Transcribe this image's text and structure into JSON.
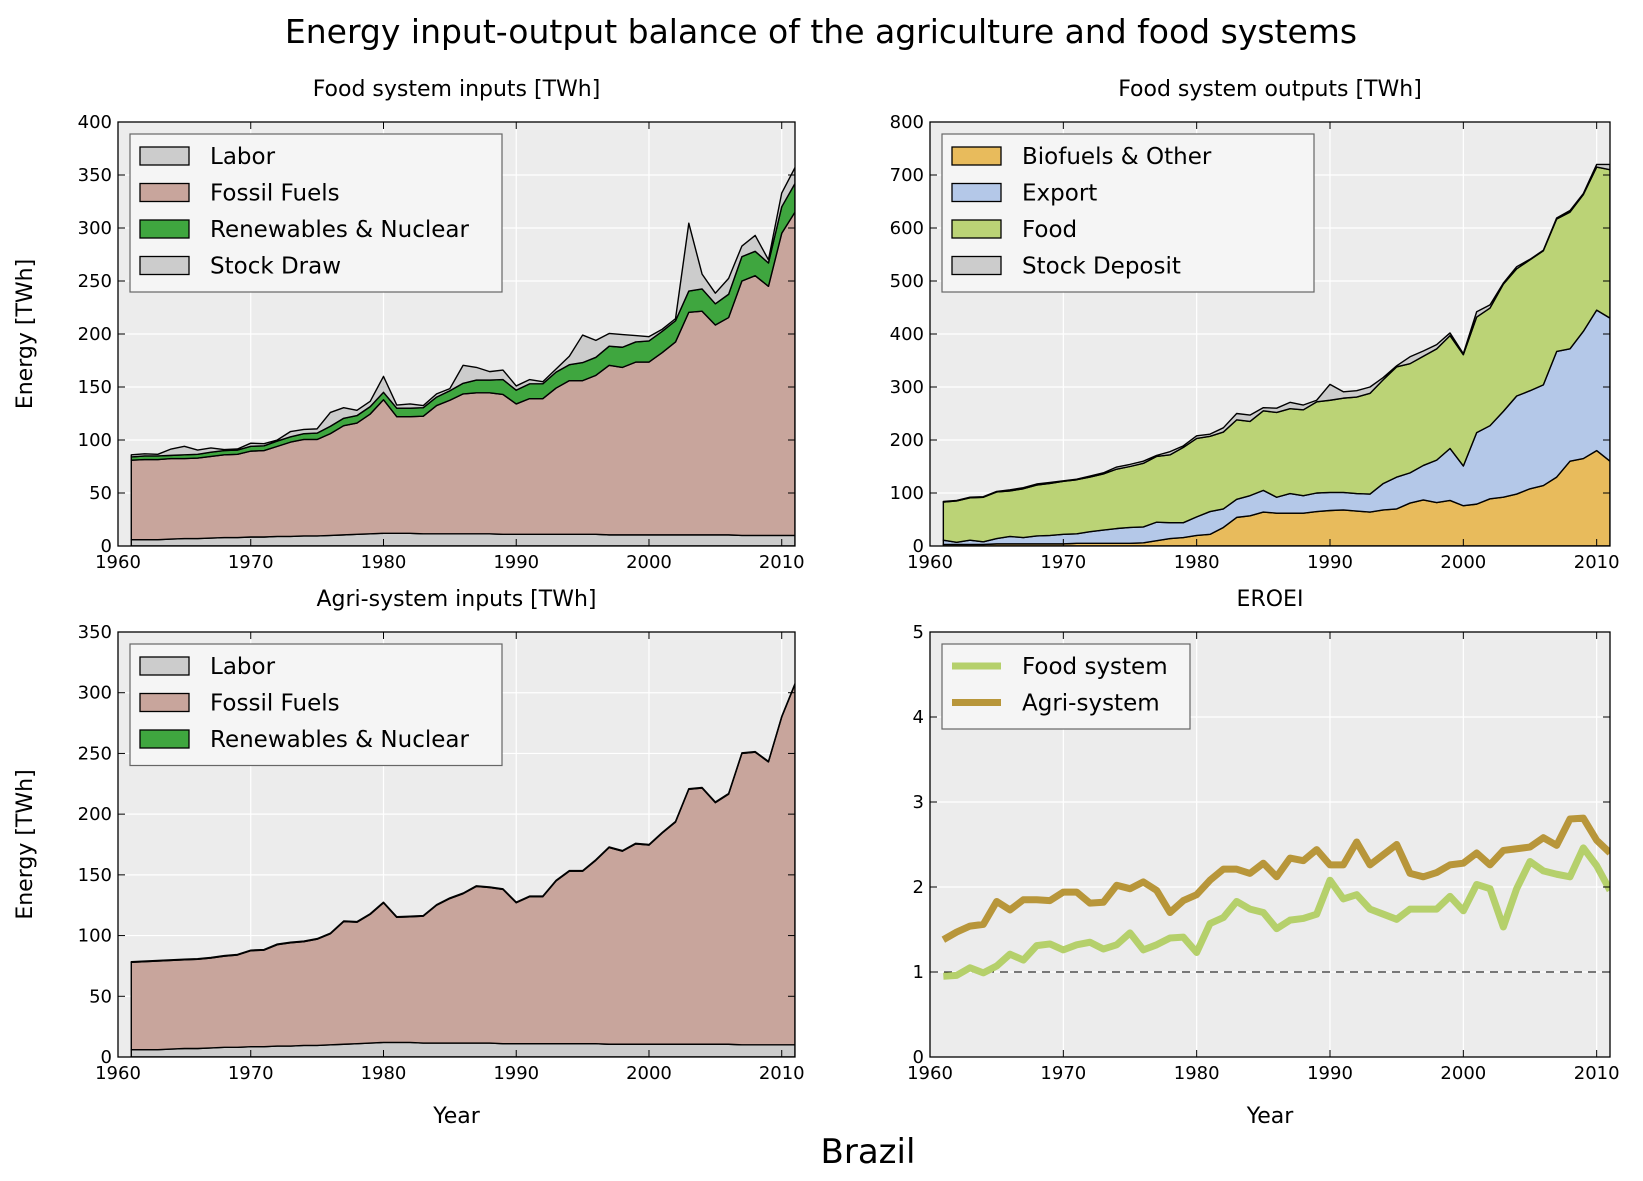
{
  "figure": {
    "title": "Energy input-output balance of the agriculture and food systems",
    "country": "Brazil"
  },
  "chart_data": [
    {
      "type": "area",
      "title": "Food system inputs [TWh]",
      "xlabel": "",
      "ylabel": "Energy [TWh]",
      "xlim": [
        1960,
        2011
      ],
      "ylim": [
        0,
        400
      ],
      "xticks": [
        1960,
        1970,
        1980,
        1990,
        2000,
        2010
      ],
      "yticks": [
        0,
        50,
        100,
        150,
        200,
        250,
        300,
        350,
        400
      ],
      "grid": true,
      "legend": "top-left",
      "stacked": true,
      "x": [
        1961,
        1962,
        1963,
        1964,
        1965,
        1966,
        1967,
        1968,
        1969,
        1970,
        1971,
        1972,
        1973,
        1974,
        1975,
        1976,
        1977,
        1978,
        1979,
        1980,
        1981,
        1982,
        1983,
        1984,
        1985,
        1986,
        1987,
        1988,
        1989,
        1990,
        1991,
        1992,
        1993,
        1994,
        1995,
        1996,
        1997,
        1998,
        1999,
        2000,
        2001,
        2002,
        2003,
        2004,
        2005,
        2006,
        2007,
        2008,
        2009,
        2010,
        2011
      ],
      "series": [
        {
          "name": "Labor",
          "color": "#cccccc",
          "values": [
            6,
            6,
            6,
            6.5,
            7,
            7,
            7.5,
            8,
            8,
            8.5,
            8.5,
            9,
            9,
            9.5,
            9.5,
            10,
            10.5,
            11,
            11.5,
            12,
            12,
            12,
            11.5,
            11.5,
            11.5,
            11.5,
            11.5,
            11.5,
            11,
            11,
            11,
            11,
            11,
            11,
            11,
            11,
            10.5,
            10.5,
            10.5,
            10.5,
            10.5,
            10.5,
            10.5,
            10.5,
            10.5,
            10.5,
            10,
            10,
            10,
            10,
            10
          ]
        },
        {
          "name": "Fossil Fuels",
          "color": "#c8a59c",
          "values": [
            75,
            75.5,
            75.5,
            76,
            75.5,
            76,
            77,
            78,
            78.5,
            81,
            81.5,
            85,
            89,
            91,
            91,
            96,
            103,
            105,
            113,
            126,
            110,
            110,
            111,
            121,
            126,
            132,
            133,
            133,
            132,
            123,
            128,
            128,
            138,
            145,
            145,
            150,
            160,
            158,
            163,
            163,
            172,
            182,
            210,
            211,
            198,
            205,
            240,
            245,
            235,
            285,
            305
          ]
        },
        {
          "name": "Renewables & Nuclear",
          "color": "#3fa63f",
          "values": [
            3,
            3.5,
            3.5,
            3,
            3.5,
            3.5,
            4,
            4,
            4,
            4.5,
            4.5,
            5,
            5,
            5.5,
            6,
            7,
            7,
            7,
            7,
            7,
            8,
            8,
            8,
            8,
            9,
            10,
            12,
            12,
            14,
            13,
            14,
            14,
            15,
            15,
            17,
            17,
            18,
            19,
            19,
            20,
            20,
            20,
            20,
            21,
            20,
            22,
            23,
            23,
            22,
            25,
            27
          ]
        },
        {
          "name": "Stock Draw",
          "color": "#cccccc",
          "values": [
            2,
            2,
            1.5,
            6,
            8,
            4,
            4,
            1,
            1,
            3,
            2,
            1,
            5,
            4,
            4,
            13,
            10,
            5,
            5,
            15,
            3,
            4,
            2,
            3,
            2,
            17,
            12,
            8,
            9,
            4,
            4,
            2,
            3,
            8,
            26,
            16,
            12,
            12,
            6,
            4,
            2,
            2,
            64,
            14,
            10,
            15,
            10,
            15,
            3,
            13,
            15
          ]
        }
      ]
    },
    {
      "type": "area",
      "title": "Food system outputs [TWh]",
      "xlabel": "",
      "ylabel": "",
      "xlim": [
        1960,
        2011
      ],
      "ylim": [
        0,
        800
      ],
      "xticks": [
        1960,
        1970,
        1980,
        1990,
        2000,
        2010
      ],
      "yticks": [
        0,
        100,
        200,
        300,
        400,
        500,
        600,
        700,
        800
      ],
      "grid": true,
      "legend": "top-left",
      "stacked": true,
      "x": [
        1961,
        1962,
        1963,
        1964,
        1965,
        1966,
        1967,
        1968,
        1969,
        1970,
        1971,
        1972,
        1973,
        1974,
        1975,
        1976,
        1977,
        1978,
        1979,
        1980,
        1981,
        1982,
        1983,
        1984,
        1985,
        1986,
        1987,
        1988,
        1989,
        1990,
        1991,
        1992,
        1993,
        1994,
        1995,
        1996,
        1997,
        1998,
        1999,
        2000,
        2001,
        2002,
        2003,
        2004,
        2005,
        2006,
        2007,
        2008,
        2009,
        2010,
        2011
      ],
      "series": [
        {
          "name": "Biofuels & Other",
          "color": "#e8bb5c",
          "values": [
            3,
            3,
            3,
            3,
            4,
            4,
            4,
            4,
            4,
            4,
            5,
            5,
            5,
            5,
            5,
            6,
            10,
            14,
            16,
            20,
            22,
            35,
            54,
            57,
            64,
            62,
            62,
            62,
            65,
            67,
            68,
            66,
            64,
            68,
            70,
            81,
            87,
            82,
            86,
            76,
            79,
            89,
            92,
            98,
            108,
            114,
            130,
            160,
            165,
            180,
            160
          ]
        },
        {
          "name": "Export",
          "color": "#b4c8e8",
          "values": [
            8,
            4,
            8,
            5,
            10,
            14,
            12,
            15,
            16,
            18,
            18,
            22,
            25,
            28,
            30,
            30,
            35,
            30,
            28,
            35,
            43,
            35,
            34,
            38,
            41,
            30,
            37,
            33,
            35,
            34,
            33,
            33,
            34,
            50,
            60,
            57,
            65,
            80,
            98,
            75,
            135,
            138,
            162,
            185,
            185,
            190,
            237,
            212,
            240,
            265,
            270
          ]
        },
        {
          "name": "Food",
          "color": "#bbd376",
          "values": [
            72,
            78,
            80,
            84,
            88,
            86,
            92,
            96,
            98,
            100,
            102,
            103,
            106,
            112,
            115,
            120,
            124,
            128,
            142,
            148,
            142,
            145,
            150,
            140,
            150,
            160,
            160,
            162,
            172,
            174,
            178,
            182,
            190,
            196,
            208,
            206,
            206,
            210,
            213,
            210,
            218,
            222,
            240,
            240,
            247,
            253,
            250,
            258,
            258,
            270,
            280
          ]
        },
        {
          "name": "Stock Deposit",
          "color": "#cccccc",
          "values": [
            1,
            1,
            1,
            1,
            1,
            2,
            2,
            2,
            2,
            1,
            1,
            2,
            2,
            4,
            4,
            4,
            2,
            6,
            3,
            5,
            4,
            8,
            12,
            12,
            6,
            8,
            12,
            9,
            3,
            30,
            12,
            12,
            12,
            4,
            2,
            13,
            10,
            8,
            5,
            2,
            10,
            6,
            2,
            4,
            1,
            1,
            2,
            3,
            2,
            5,
            10
          ]
        }
      ]
    },
    {
      "type": "area",
      "title": "Agri-system inputs [TWh]",
      "xlabel": "Year",
      "ylabel": "Energy [TWh]",
      "xlim": [
        1960,
        2011
      ],
      "ylim": [
        0,
        350
      ],
      "xticks": [
        1960,
        1970,
        1980,
        1990,
        2000,
        2010
      ],
      "yticks": [
        0,
        50,
        100,
        150,
        200,
        250,
        300,
        350
      ],
      "grid": true,
      "legend": "top-left",
      "stacked": true,
      "x": [
        1961,
        1962,
        1963,
        1964,
        1965,
        1966,
        1967,
        1968,
        1969,
        1970,
        1971,
        1972,
        1973,
        1974,
        1975,
        1976,
        1977,
        1978,
        1979,
        1980,
        1981,
        1982,
        1983,
        1984,
        1985,
        1986,
        1987,
        1988,
        1989,
        1990,
        1991,
        1992,
        1993,
        1994,
        1995,
        1996,
        1997,
        1998,
        1999,
        2000,
        2001,
        2002,
        2003,
        2004,
        2005,
        2006,
        2007,
        2008,
        2009,
        2010,
        2011
      ],
      "series": [
        {
          "name": "Labor",
          "color": "#cccccc",
          "values": [
            6,
            6,
            6,
            6.5,
            7,
            7,
            7.5,
            8,
            8,
            8.5,
            8.5,
            9,
            9,
            9.5,
            9.5,
            10,
            10.5,
            11,
            11.5,
            12,
            12,
            12,
            11.5,
            11.5,
            11.5,
            11.5,
            11.5,
            11.5,
            11,
            11,
            11,
            11,
            11,
            11,
            11,
            11,
            10.5,
            10.5,
            10.5,
            10.5,
            10.5,
            10.5,
            10.5,
            10.5,
            10.5,
            10.5,
            10,
            10,
            10,
            10,
            10
          ]
        },
        {
          "name": "Fossil Fuels",
          "color": "#c8a59c",
          "values": [
            72,
            72.5,
            73,
            73,
            73,
            73.5,
            74,
            75,
            76,
            79,
            79.5,
            83.5,
            85,
            85.5,
            87.5,
            91.5,
            101,
            100,
            106,
            115,
            103,
            103.5,
            104.5,
            113.5,
            119,
            123,
            129,
            128,
            127,
            116,
            121,
            121,
            134,
            142,
            142,
            151,
            162,
            159,
            165,
            164,
            174,
            183,
            210,
            211,
            199,
            206,
            240,
            241,
            233,
            270,
            297
          ]
        },
        {
          "name": "Renewables & Nuclear",
          "color": "#3fa63f",
          "values": [
            0.5,
            0.5,
            0.5,
            0.5,
            0.5,
            0.5,
            0.5,
            0.5,
            0.5,
            0.5,
            0.5,
            0.5,
            0.5,
            0.5,
            0.5,
            0.5,
            0.5,
            0.5,
            0.5,
            0.5,
            0.5,
            0.5,
            0.5,
            0.5,
            0.5,
            0.5,
            0.5,
            0.5,
            0.5,
            0.5,
            0.5,
            0.5,
            0.5,
            0.5,
            0.5,
            0.5,
            0.5,
            0.5,
            0.5,
            0.5,
            0.5,
            0.5,
            0.5,
            0.5,
            0.5,
            0.5,
            0.5,
            0.5,
            0.5,
            0.5,
            0.5
          ]
        }
      ]
    },
    {
      "type": "line",
      "title": "EROEI",
      "xlabel": "Year",
      "ylabel": "",
      "xlim": [
        1960,
        2011
      ],
      "ylim": [
        0,
        5
      ],
      "xticks": [
        1960,
        1970,
        1980,
        1990,
        2000,
        2010
      ],
      "yticks": [
        0,
        1,
        2,
        3,
        4,
        5
      ],
      "grid": true,
      "legend": "top-left",
      "reference_line": 1,
      "x": [
        1961,
        1962,
        1963,
        1964,
        1965,
        1966,
        1967,
        1968,
        1969,
        1970,
        1971,
        1972,
        1973,
        1974,
        1975,
        1976,
        1977,
        1978,
        1979,
        1980,
        1981,
        1982,
        1983,
        1984,
        1985,
        1986,
        1987,
        1988,
        1989,
        1990,
        1991,
        1992,
        1993,
        1994,
        1995,
        1996,
        1997,
        1998,
        1999,
        2000,
        2001,
        2002,
        2003,
        2004,
        2005,
        2006,
        2007,
        2008,
        2009,
        2010,
        2011
      ],
      "series": [
        {
          "name": "Food system",
          "color": "#b5d06b",
          "values": [
            0.95,
            0.96,
            1.05,
            0.99,
            1.07,
            1.21,
            1.14,
            1.31,
            1.33,
            1.26,
            1.32,
            1.35,
            1.27,
            1.32,
            1.46,
            1.26,
            1.32,
            1.4,
            1.41,
            1.23,
            1.57,
            1.64,
            1.83,
            1.74,
            1.7,
            1.51,
            1.61,
            1.63,
            1.68,
            2.08,
            1.86,
            1.91,
            1.74,
            1.68,
            1.62,
            1.74,
            1.74,
            1.74,
            1.89,
            1.72,
            2.03,
            1.98,
            1.53,
            1.98,
            2.3,
            2.19,
            2.15,
            2.12,
            2.46,
            2.25,
            1.96
          ]
        },
        {
          "name": "Agri-system",
          "color": "#b8963a",
          "values": [
            1.38,
            1.47,
            1.54,
            1.56,
            1.83,
            1.73,
            1.85,
            1.85,
            1.84,
            1.94,
            1.94,
            1.81,
            1.82,
            2.02,
            1.98,
            2.06,
            1.96,
            1.7,
            1.84,
            1.91,
            2.08,
            2.21,
            2.21,
            2.16,
            2.28,
            2.12,
            2.34,
            2.31,
            2.44,
            2.26,
            2.26,
            2.53,
            2.26,
            2.38,
            2.5,
            2.16,
            2.12,
            2.17,
            2.26,
            2.28,
            2.4,
            2.26,
            2.43,
            2.45,
            2.47,
            2.58,
            2.49,
            2.8,
            2.81,
            2.55,
            2.4
          ]
        }
      ]
    }
  ]
}
